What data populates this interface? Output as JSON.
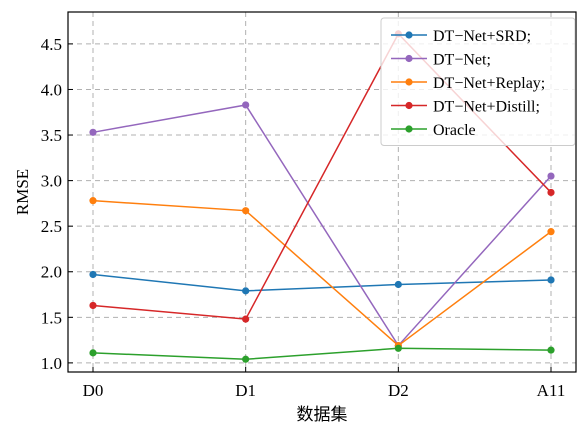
{
  "chart_data": {
    "type": "line",
    "categories": [
      "D0",
      "D1",
      "D2",
      "A11"
    ],
    "xlabel": "数据集",
    "ylabel": "RMSE",
    "ylim": [
      0.9,
      4.85
    ],
    "yticks": [
      "1.0",
      "1.5",
      "2.0",
      "2.5",
      "3.0",
      "3.5",
      "4.0",
      "4.5"
    ],
    "grid": true,
    "legend_position": "top-right",
    "series": [
      {
        "name": "DT−Net+SRD;",
        "color": "#1f77b4",
        "values": [
          1.97,
          1.79,
          1.86,
          1.91
        ]
      },
      {
        "name": "DT−Net;",
        "color": "#9467bd",
        "values": [
          3.53,
          3.83,
          1.19,
          3.05
        ]
      },
      {
        "name": "DT−Net+Replay;",
        "color": "#ff7f0e",
        "values": [
          2.78,
          2.67,
          1.19,
          2.44
        ]
      },
      {
        "name": "DT−Net+Distill;",
        "color": "#d62728",
        "values": [
          1.63,
          1.48,
          4.61,
          2.87
        ]
      },
      {
        "name": "Oracle",
        "color": "#2ca02c",
        "values": [
          1.11,
          1.04,
          1.16,
          1.14
        ]
      }
    ]
  }
}
